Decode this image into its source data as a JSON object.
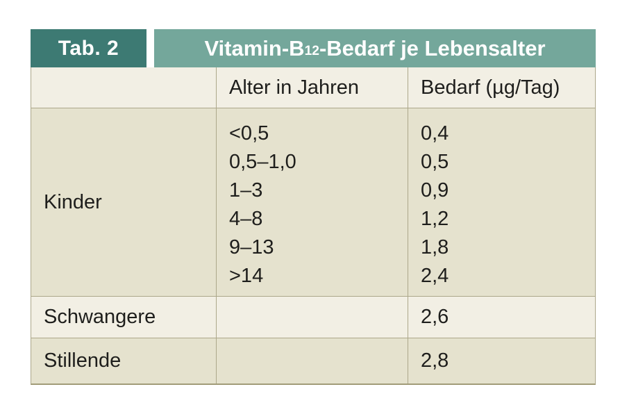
{
  "figure": {
    "tag_label": "Tab. 2",
    "title": {
      "prefix": "Vitamin-B",
      "subscript": "12",
      "suffix": "-Bedarf je Lebensalter"
    },
    "columns": {
      "group": "",
      "age": "Alter in Jahren",
      "requirement": "Bedarf (µg/Tag)"
    },
    "rows": [
      {
        "label": "Kinder",
        "ages": [
          "<0,5",
          "0,5–1,0",
          "1–3",
          "4–8",
          "9–13",
          ">14"
        ],
        "values": [
          "0,4",
          "0,5",
          "0,9",
          "1,2",
          "1,8",
          "2,4"
        ]
      },
      {
        "label": "Schwangere",
        "age": "",
        "value": "2,6"
      },
      {
        "label": "Stillende",
        "age": "",
        "value": "2,8"
      }
    ],
    "colors": {
      "dark_teal": "#3d7a73",
      "light_teal": "#74a79b",
      "header_row_bg": "#f2efe4",
      "dark_row_bg": "#e5e2ce",
      "light_row_bg": "#f2efe4",
      "border": "#aca78a",
      "text": "#1e1e1c",
      "band_text": "#ffffff"
    }
  },
  "chart_data": {
    "type": "table",
    "tag": "Tab. 2",
    "title": "Vitamin-B12-Bedarf je Lebensalter",
    "columns": [
      "",
      "Alter in Jahren",
      "Bedarf (µg/Tag)"
    ],
    "rows": [
      [
        "Kinder",
        "<0,5",
        "0,4"
      ],
      [
        "Kinder",
        "0,5–1,0",
        "0,5"
      ],
      [
        "Kinder",
        "1–3",
        "0,9"
      ],
      [
        "Kinder",
        "4–8",
        "1,2"
      ],
      [
        "Kinder",
        "9–13",
        "1,8"
      ],
      [
        "Kinder",
        ">14",
        "2,4"
      ],
      [
        "Schwangere",
        "",
        "2,6"
      ],
      [
        "Stillende",
        "",
        "2,8"
      ]
    ]
  }
}
